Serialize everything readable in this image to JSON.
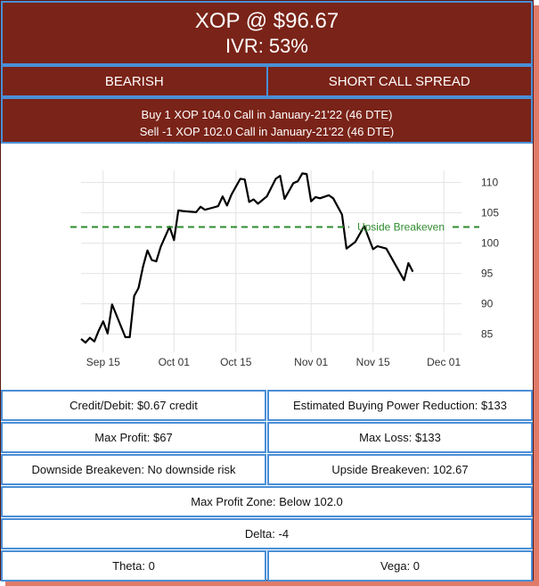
{
  "header": {
    "title": "XOP @ $96.67",
    "ivr": "IVR: 53%",
    "direction": "BEARISH",
    "strategy": "SHORT CALL SPREAD",
    "leg1": "Buy 1 XOP 104.0 Call in January-21'22 (46 DTE)",
    "leg2": "Sell -1 XOP 102.0 Call in January-21'22 (46 DTE)"
  },
  "colors": {
    "header_bg": "#7a2318",
    "border": "#4a8fd6",
    "shadow": "#e07b6a",
    "price_line": "#000000",
    "breakeven_line": "#2e8b2e"
  },
  "chart_data": {
    "type": "line",
    "categories": [
      "Sep 10",
      "Sep 11",
      "Sep 12",
      "Sep 13",
      "Sep 14",
      "Sep 15",
      "Sep 16",
      "Sep 17",
      "Sep 18",
      "Sep 19",
      "Sep 20",
      "Sep 21",
      "Sep 22",
      "Sep 23",
      "Sep 24",
      "Sep 25",
      "Sep 26",
      "Sep 27",
      "Sep 28",
      "Sep 29",
      "Sep 30",
      "Oct 01",
      "Oct 02",
      "Oct 03",
      "Oct 04",
      "Oct 05",
      "Oct 06",
      "Oct 07",
      "Oct 08",
      "Oct 09",
      "Oct 10",
      "Oct 11",
      "Oct 12",
      "Oct 13",
      "Oct 14",
      "Oct 15",
      "Oct 16",
      "Oct 17",
      "Oct 18",
      "Oct 19",
      "Oct 20",
      "Oct 21",
      "Oct 22",
      "Oct 23",
      "Oct 24",
      "Oct 25",
      "Oct 26",
      "Oct 27",
      "Oct 28",
      "Oct 29",
      "Oct 30",
      "Oct 31",
      "Nov 01",
      "Nov 02",
      "Nov 03",
      "Nov 04",
      "Nov 05",
      "Nov 06",
      "Nov 07",
      "Nov 08",
      "Nov 09",
      "Nov 10",
      "Nov 11",
      "Nov 12",
      "Nov 13",
      "Nov 14",
      "Nov 15",
      "Nov 16",
      "Nov 17",
      "Nov 18",
      "Nov 19",
      "Nov 20",
      "Nov 21",
      "Nov 22",
      "Nov 23",
      "Nov 24",
      "Nov 25",
      "Nov 26",
      "Nov 27",
      "Nov 28",
      "Nov 29",
      "Nov 30",
      "Dec 01",
      "Dec 02",
      "Dec 03",
      "Dec 04",
      "Dec 05"
    ],
    "series": [
      {
        "values": [
          84.2,
          83.6,
          84.4,
          83.8,
          85.6,
          87.1,
          85.1,
          89.9,
          null,
          null,
          84.5,
          84.5,
          91.3,
          92.6,
          96.1,
          98.8,
          97.2,
          97.0,
          99.4,
          null,
          102.7,
          100.5,
          105.4,
          105.3,
          null,
          null,
          105.1,
          106.0,
          105.5,
          null,
          105.9,
          106.1,
          107.7,
          106.2,
          108.0,
          null,
          110.6,
          110.5,
          106.8,
          107.2,
          106.5,
          null,
          107.7,
          null,
          110.6,
          111.1,
          107.3,
          null,
          109.9,
          110.2,
          111.5,
          111.4,
          106.9,
          107.6,
          107.4,
          null,
          107.9,
          107.4,
          null,
          104.7,
          99.1,
          null,
          100.2,
          null,
          102.8,
          null,
          99.0,
          99.5,
          null,
          99.1,
          null,
          null,
          null,
          93.9,
          96.7,
          95.3,
          null,
          null,
          null,
          null,
          null,
          null,
          null,
          null,
          null,
          null,
          null
        ]
      }
    ],
    "ylim": [
      82,
      112
    ],
    "yticks": [
      85,
      90,
      95,
      100,
      105,
      110
    ],
    "xtick_labels": [
      "Sep 15",
      "Oct 01",
      "Oct 15",
      "Nov 01",
      "Nov 15",
      "Dec 01"
    ],
    "breakeven": {
      "value": 102.67,
      "label": "Upside Breakeven"
    },
    "grid": true
  },
  "stats": {
    "credit_debit": "Credit/Debit: $0.67 credit",
    "bpr": "Estimated Buying Power Reduction: $133",
    "max_profit": "Max Profit: $67",
    "max_loss": "Max Loss: $133",
    "downside_breakeven": "Downside Breakeven: No downside risk",
    "upside_breakeven": "Upside Breakeven: 102.67",
    "max_profit_zone": "Max Profit Zone: Below 102.0",
    "delta": "Delta: -4",
    "theta": "Theta: 0",
    "vega": "Vega: 0"
  }
}
